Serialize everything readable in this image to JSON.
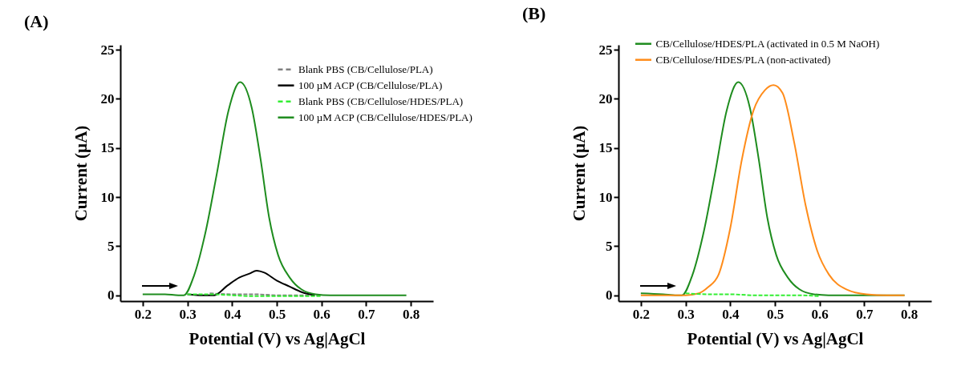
{
  "chart_data": [
    {
      "type": "line",
      "title": "(A)",
      "xlabel": "Potential (V) vs Ag|AgCl",
      "ylabel": "Current (µA)",
      "xlim": [
        0.15,
        0.85
      ],
      "ylim": [
        -0.6,
        25.5
      ],
      "xticks": [
        0.2,
        0.3,
        0.4,
        0.5,
        0.6,
        0.7,
        0.8
      ],
      "yticks": [
        0,
        5,
        10,
        15,
        20,
        25
      ],
      "grid": false,
      "legend": "top right",
      "marker": "none",
      "series": [
        {
          "name": "Blank PBS (CB/Cellulose/PLA)",
          "color": "#808080",
          "line_style": "dashed",
          "x": [
            0.35,
            0.4,
            0.45,
            0.5,
            0.55,
            0.6
          ],
          "values": [
            0.2,
            0.1,
            0.1,
            0.0,
            0.0,
            0.0
          ]
        },
        {
          "name": "100 µM ACP (CB/Cellulose/PLA)",
          "color": "#000000",
          "line_style": "solid",
          "x": [
            0.3,
            0.335,
            0.36,
            0.39,
            0.416,
            0.439,
            0.455,
            0.472,
            0.5,
            0.528,
            0.557,
            0.585
          ],
          "values": [
            0.1,
            0.0,
            0.0,
            1.0,
            1.8,
            2.2,
            2.5,
            2.3,
            1.5,
            0.9,
            0.3,
            0.0
          ]
        },
        {
          "name": "Blank PBS (CB/Cellulose/HDES/PLA)",
          "color": "#33ee33",
          "line_style": "dashed",
          "x": [
            0.3,
            0.35,
            0.4,
            0.45,
            0.5,
            0.55,
            0.6
          ],
          "values": [
            0.1,
            0.1,
            0.0,
            -0.1,
            -0.1,
            -0.1,
            -0.1
          ]
        },
        {
          "name": "100 µM ACP (CB/Cellulose/HDES/PLA)",
          "color": "#1e8c1e",
          "line_style": "solid",
          "x": [
            0.2,
            0.25,
            0.28,
            0.292,
            0.315,
            0.341,
            0.366,
            0.392,
            0.418,
            0.444,
            0.464,
            0.483,
            0.503,
            0.529,
            0.555,
            0.587,
            0.62,
            0.7,
            0.79
          ],
          "values": [
            0.1,
            0.1,
            0.0,
            0.0,
            2.0,
            6.5,
            12.4,
            18.8,
            21.7,
            19.1,
            13.8,
            7.9,
            4.1,
            1.8,
            0.6,
            0.1,
            0.0,
            0.0,
            0.0
          ]
        }
      ]
    },
    {
      "type": "line",
      "title": "(B)",
      "xlabel": "Potential (V) vs Ag|AgCl",
      "ylabel": "Current (µA)",
      "xlim": [
        0.15,
        0.85
      ],
      "ylim": [
        -0.6,
        25.5
      ],
      "xticks": [
        0.2,
        0.3,
        0.4,
        0.5,
        0.6,
        0.7,
        0.8
      ],
      "yticks": [
        0,
        5,
        10,
        15,
        20,
        25
      ],
      "grid": false,
      "legend": "top left",
      "marker": "none",
      "series": [
        {
          "name": "CB/Cellulose/HDES/PLA (activated in 0.5 M NaOH)",
          "color": "#1e8c1e",
          "line_style": "solid",
          "x": [
            0.2,
            0.25,
            0.28,
            0.292,
            0.315,
            0.341,
            0.366,
            0.392,
            0.418,
            0.444,
            0.464,
            0.483,
            0.503,
            0.529,
            0.555,
            0.587,
            0.62,
            0.7,
            0.79
          ],
          "values": [
            0.2,
            0.1,
            0.0,
            0.0,
            2.0,
            6.5,
            12.4,
            18.8,
            21.7,
            19.1,
            13.8,
            7.9,
            4.1,
            1.8,
            0.6,
            0.1,
            0.0,
            0.0,
            0.0
          ]
        },
        {
          "name": "CB/Cellulose/HDES/PLA (non-activated)",
          "color": "#ff8c1a",
          "line_style": "solid",
          "x": [
            0.2,
            0.25,
            0.3,
            0.33,
            0.35,
            0.374,
            0.4,
            0.426,
            0.452,
            0.478,
            0.497,
            0.517,
            0.543,
            0.569,
            0.595,
            0.621,
            0.66,
            0.705,
            0.75,
            0.79
          ],
          "values": [
            0.0,
            0.0,
            0.0,
            0.2,
            0.8,
            2.1,
            6.8,
            13.8,
            18.8,
            20.9,
            21.4,
            20.6,
            15.6,
            9.1,
            4.5,
            2.1,
            0.6,
            0.1,
            0.0,
            0.0
          ]
        },
        {
          "color": "#33ee33",
          "line_style": "dashed",
          "x": [
            0.3,
            0.35,
            0.4,
            0.45,
            0.5,
            0.55,
            0.6
          ],
          "values": [
            0.2,
            0.1,
            0.1,
            0.0,
            0.0,
            0.0,
            -0.1
          ]
        }
      ]
    }
  ]
}
